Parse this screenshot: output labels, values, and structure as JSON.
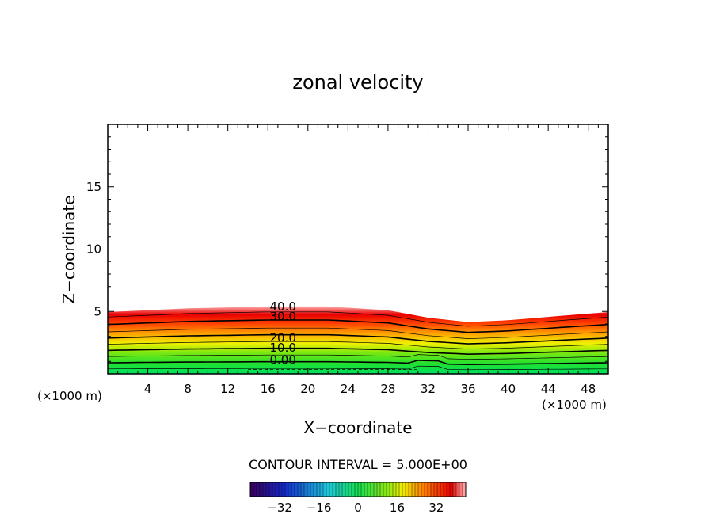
{
  "chart_data": {
    "type": "contour",
    "title": "zonal velocity",
    "xlabel": "X−coordinate",
    "ylabel": "Z−coordinate",
    "x_unit_left": "(×1000 m)",
    "x_unit_right": "(×1000 m)",
    "xlim": [
      0,
      50
    ],
    "ylim": [
      0,
      20
    ],
    "x_ticks": [
      4,
      8,
      12,
      16,
      20,
      24,
      28,
      32,
      36,
      40,
      44,
      48
    ],
    "y_ticks": [
      5,
      10,
      15
    ],
    "contour_labels": [
      {
        "text": "40.0",
        "x": 17.5,
        "z": 5.4
      },
      {
        "text": "30.0",
        "x": 17.5,
        "z": 4.6
      },
      {
        "text": "20.0",
        "x": 17.5,
        "z": 2.9
      },
      {
        "text": "10.0",
        "x": 17.5,
        "z": 2.1
      },
      {
        "text": "0.00",
        "x": 17.5,
        "z": 1.1
      }
    ],
    "contour_interval_text": "CONTOUR INTERVAL = 5.000E+00",
    "colorbar": {
      "range": [
        -44,
        44
      ],
      "ticks": [
        -32,
        -16,
        0,
        16,
        32
      ],
      "tick_labels": [
        "−32",
        "−16",
        "0",
        "16",
        "32"
      ]
    },
    "colors": {
      "min": "#3a005a",
      "blue": "#2030d0",
      "cyan": "#20d0d0",
      "green": "#10e040",
      "yellow": "#f0f000",
      "orange": "#ff7000",
      "red": "#e80000",
      "pink": "#ffb0b0"
    }
  }
}
